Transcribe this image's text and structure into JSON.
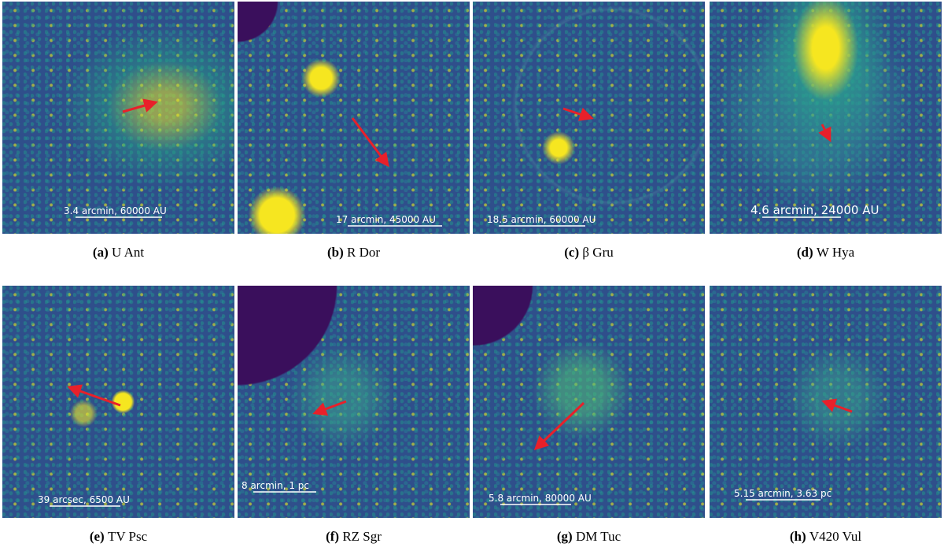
{
  "panels": [
    {
      "label": "(a)",
      "name": "U Ant",
      "scale_bar": "3.4 arcmin, 60000 AU"
    },
    {
      "label": "(b)",
      "name": "R Dor",
      "scale_bar": "17 arcmin, 45000 AU"
    },
    {
      "label": "(c)",
      "name": "β Gru",
      "scale_bar": "18.5 arcmin, 60000 AU"
    },
    {
      "label": "(d)",
      "name": "W Hya",
      "scale_bar": "4.6 arcmin, 24000 AU"
    },
    {
      "label": "(e)",
      "name": "TV Psc",
      "scale_bar": "39 arcsec, 6500 AU"
    },
    {
      "label": "(f)",
      "name": "RZ Sgr",
      "scale_bar": "8 arcmin, 1 pc"
    },
    {
      "label": "(g)",
      "name": "DM Tuc",
      "scale_bar": "5.8 arcmin, 80000 AU"
    },
    {
      "label": "(h)",
      "name": "V420 Vul",
      "scale_bar": "5.15 arcmin, 3.63 pc"
    }
  ]
}
